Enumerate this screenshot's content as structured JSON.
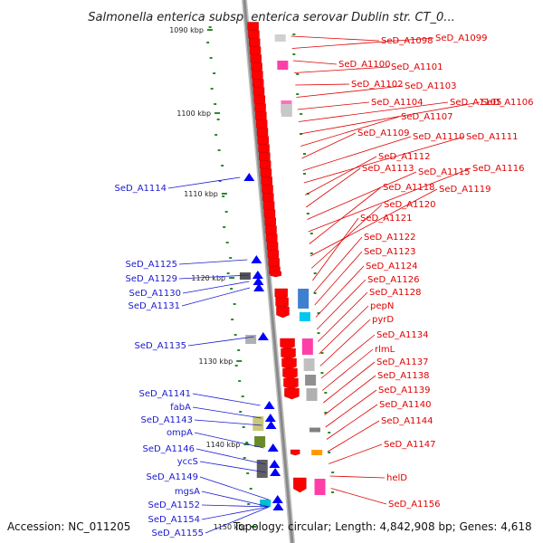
{
  "title": "Salmonella enterica subsp. enterica serovar Dublin str. CT_0...",
  "footer": {
    "accession": "Accession: NC_011205",
    "summary": "Topology: circular; Length: 4,842,908 bp; Genes: 4,618"
  },
  "kbp_ticks": [
    "1090 kbp",
    "1100 kbp",
    "1110 kbp",
    "1120 kbp",
    "1130 kbp",
    "1140 kbp",
    "1150 kbp"
  ],
  "forward_labels": [
    "SeD_A1098",
    "SeD_A1099",
    "SeD_A1100",
    "SeD_A1101",
    "SeD_A1102",
    "SeD_A1103",
    "SeD_A1104",
    "SeD_A1105",
    "SeD_A1106",
    "SeD_A1107",
    "SeD_A1109",
    "SeD_A1110",
    "SeD_A1111",
    "SeD_A1112",
    "SeD_A1113",
    "SeD_A1115",
    "SeD_A1116",
    "SeD_A1118",
    "SeD_A1119",
    "SeD_A1120",
    "SeD_A1121",
    "SeD_A1122",
    "SeD_A1123",
    "SeD_A1124",
    "SeD_A1126",
    "SeD_A1128",
    "pepN",
    "pyrD",
    "SeD_A1134",
    "rlmL",
    "SeD_A1137",
    "SeD_A1138",
    "SeD_A1139",
    "SeD_A1140",
    "SeD_A1144",
    "SeD_A1147",
    "helD",
    "SeD_A1156"
  ],
  "reverse_labels": [
    "SeD_A1114",
    "SeD_A1125",
    "SeD_A1129",
    "SeD_A1130",
    "SeD_A1131",
    "SeD_A1135",
    "SeD_A1141",
    "fabA",
    "SeD_A1143",
    "ompA",
    "SeD_A1146",
    "yccS",
    "SeD_A1149",
    "mgsA",
    "SeD_A1152",
    "SeD_A1154",
    "SeD_A1155"
  ],
  "colors": {
    "forward_label": "#e00000",
    "reverse_label": "#1a1ad0",
    "forward_gene": "#ff0000",
    "reverse_gene": "#0000ff",
    "backbone": "#8a8a8a",
    "gc_tick": "#2a8a2a"
  }
}
